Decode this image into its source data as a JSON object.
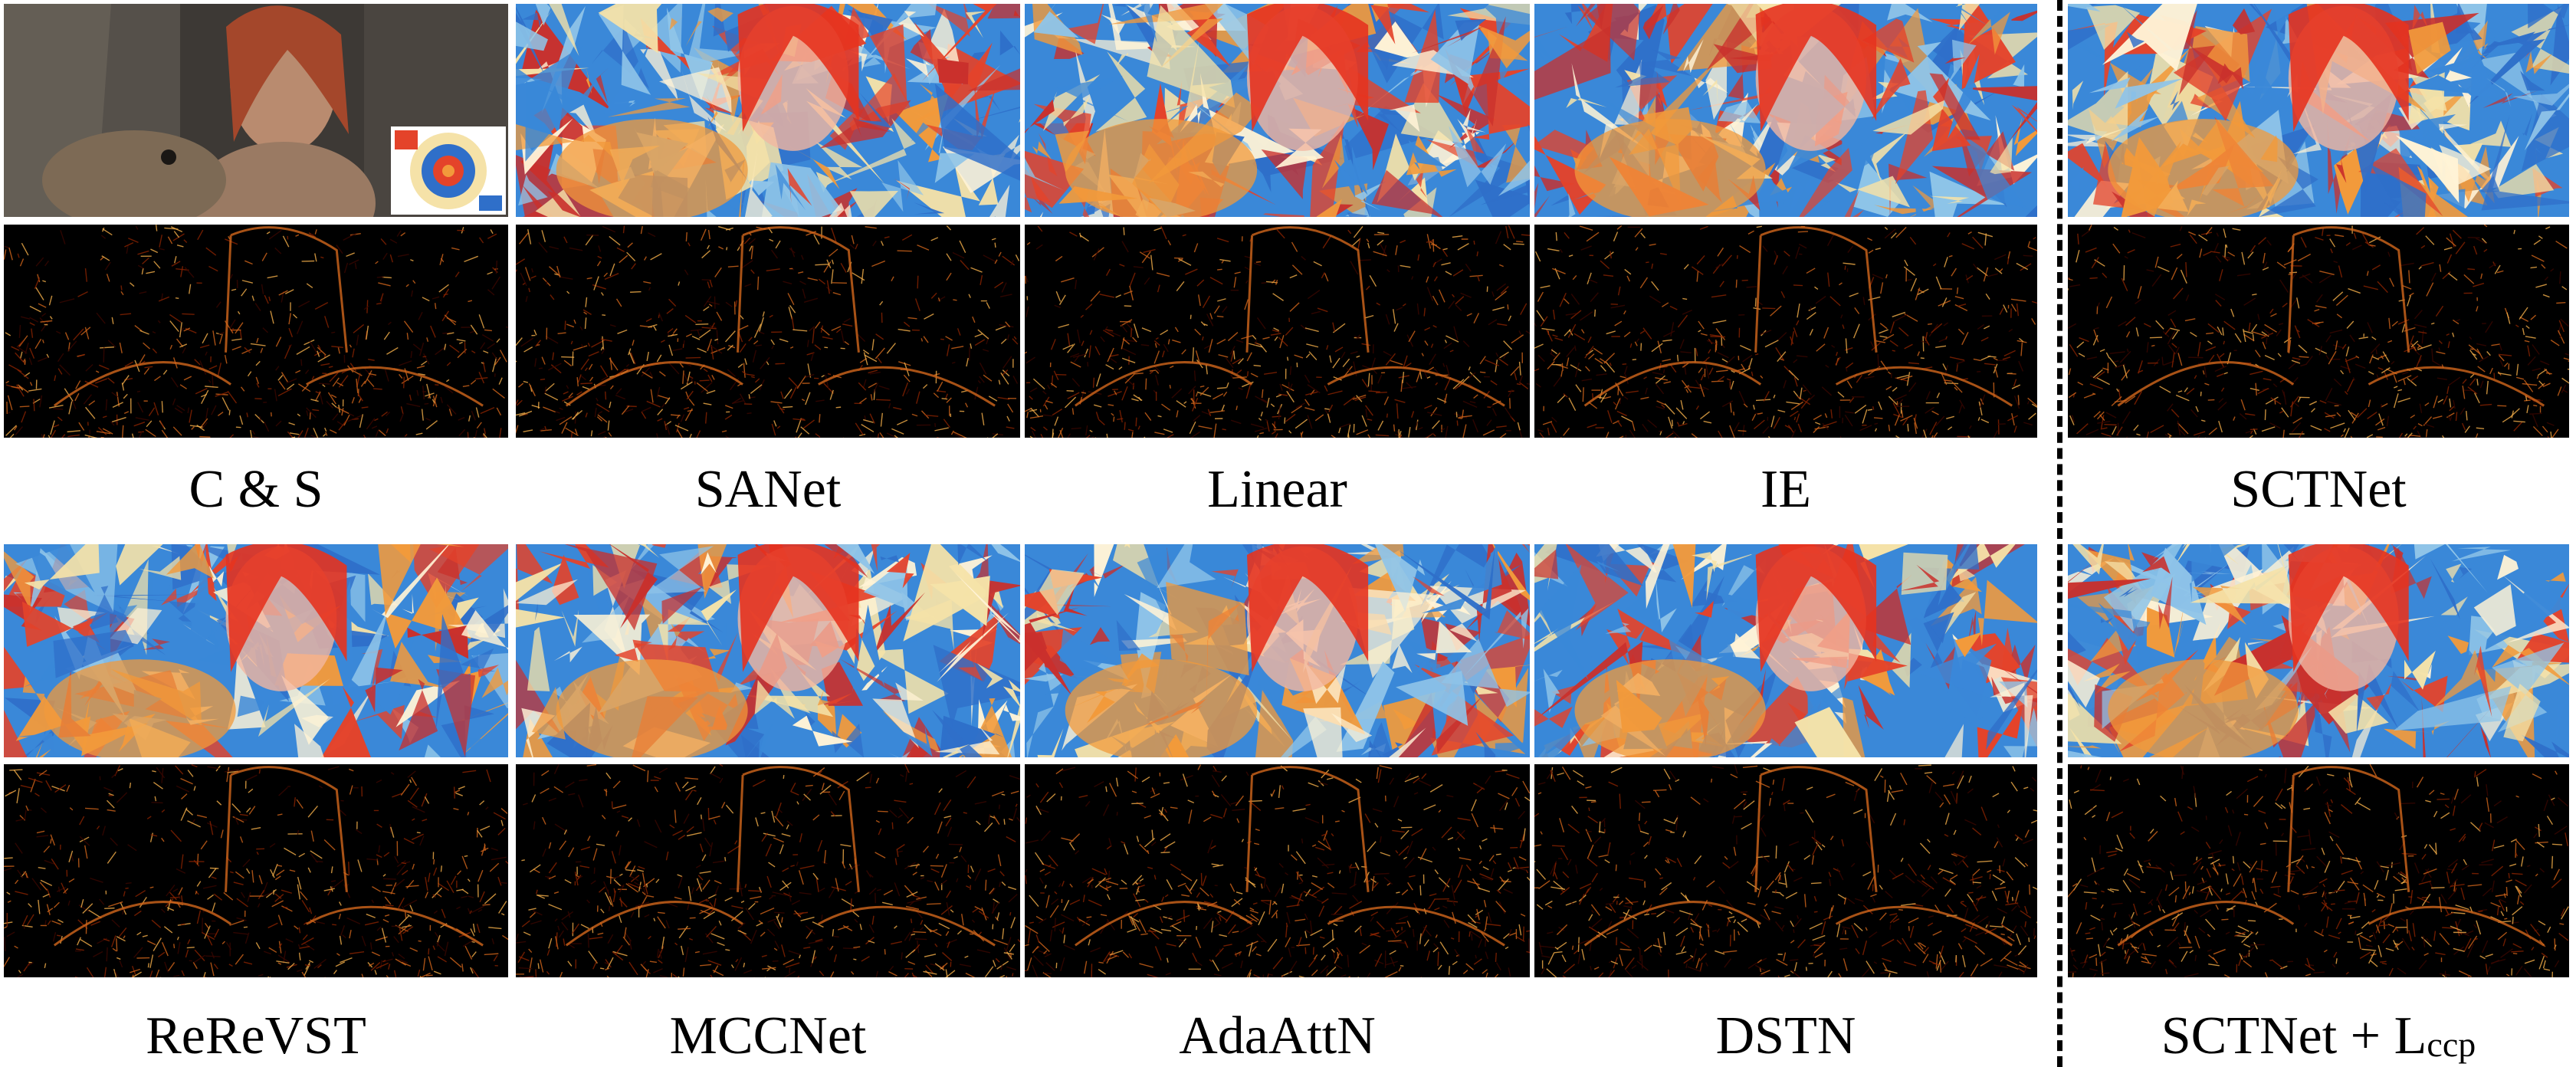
{
  "figure": {
    "row1_labels": [
      "C & S",
      "SANet",
      "Linear",
      "IE",
      "SCTNet"
    ],
    "row2_labels": [
      "ReReVST",
      "MCCNet",
      "AdaAttN",
      "DSTN"
    ],
    "last_label": {
      "main": "SCTNet + L",
      "sub": "ccp"
    }
  },
  "palette": {
    "stylized": [
      "#2f6fc9",
      "#e4432a",
      "#f29a3b",
      "#f5e2a8",
      "#8fc4e8",
      "#c9302c",
      "#3a88d8",
      "#fff3d6"
    ],
    "heat": [
      "#000000",
      "#3a0700",
      "#8a2300",
      "#d2661b",
      "#f5b04a"
    ],
    "photo": [
      "#3b3733",
      "#56514a",
      "#6b6358",
      "#2a2623",
      "#8b7d6a"
    ]
  }
}
